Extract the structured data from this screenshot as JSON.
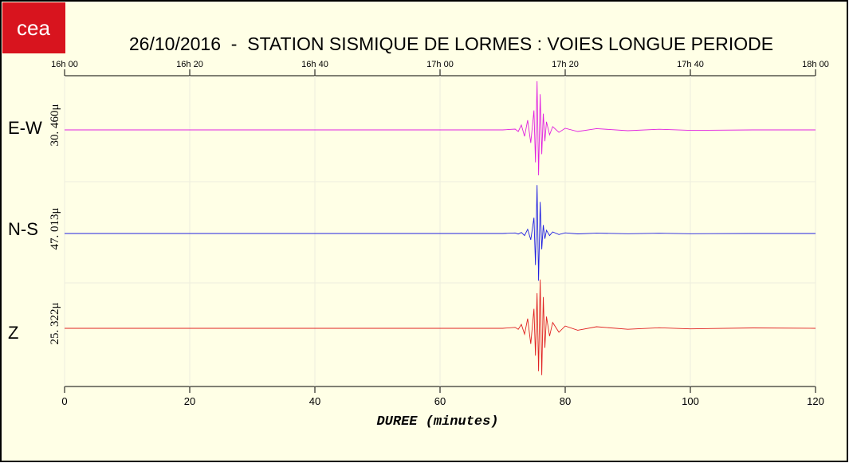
{
  "logo": "cea",
  "chart_data": {
    "type": "seismogram",
    "title": "26/10/2016  -  STATION SISMIQUE DE LORMES : VOIES LONGUE PERIODE",
    "x_label": "DUREE (minutes)",
    "xlim": [
      0,
      120
    ],
    "xticks": [
      0,
      20,
      40,
      60,
      80,
      100,
      120
    ],
    "xticks_top": [
      {
        "value": 0,
        "label": "16h 00"
      },
      {
        "value": 20,
        "label": "16h 20"
      },
      {
        "value": 40,
        "label": "16h 40"
      },
      {
        "value": 60,
        "label": "17h 00"
      },
      {
        "value": 80,
        "label": "17h 20"
      },
      {
        "value": 100,
        "label": "17h 40"
      },
      {
        "value": 120,
        "label": "18h 00"
      }
    ],
    "grid": true,
    "x": [
      0,
      10,
      20,
      30,
      40,
      50,
      60,
      70,
      72,
      72.5,
      73,
      73.5,
      74,
      74.5,
      75,
      75.25,
      75.5,
      75.75,
      76,
      76.25,
      76.5,
      76.75,
      77,
      77.5,
      78,
      79,
      80,
      82,
      85,
      90,
      95,
      100,
      110,
      120
    ],
    "series": [
      {
        "name": "E-W",
        "color": "#e020e0",
        "scale_label": "30. 460μ",
        "scale": 30.46,
        "values": [
          0,
          0,
          0,
          0,
          0,
          0,
          0,
          0,
          0.5,
          -1,
          3,
          -4,
          6,
          -8,
          12,
          -20,
          30,
          -28,
          22,
          -15,
          10,
          -7,
          5,
          -3,
          2,
          -1.5,
          1,
          -1,
          0.8,
          -0.5,
          0.4,
          -0.3,
          0,
          0
        ]
      },
      {
        "name": "N-S",
        "color": "#2020e0",
        "scale_label": "47. 013μ",
        "scale": 47.013,
        "values": [
          0,
          0,
          0,
          0,
          0,
          0,
          0,
          0,
          0.5,
          -0.5,
          1,
          -2,
          4,
          -6,
          15,
          -30,
          46,
          -45,
          30,
          -15,
          8,
          -5,
          3,
          -2,
          1.5,
          -1,
          0.6,
          -0.4,
          0.3,
          -0.2,
          0.2,
          -0.2,
          0,
          0
        ]
      },
      {
        "name": "Z",
        "color": "#e02020",
        "scale_label": "25. 322μ",
        "scale": 25.322,
        "values": [
          0,
          0,
          0,
          0,
          0,
          0,
          0,
          0,
          0.5,
          -0.5,
          2,
          -3,
          5,
          -8,
          10,
          -14,
          18,
          -22,
          25,
          -24,
          16,
          -10,
          6,
          -4,
          3,
          -2,
          1.2,
          -1,
          0.8,
          -0.5,
          0.3,
          -0.3,
          0.2,
          0
        ]
      }
    ]
  }
}
